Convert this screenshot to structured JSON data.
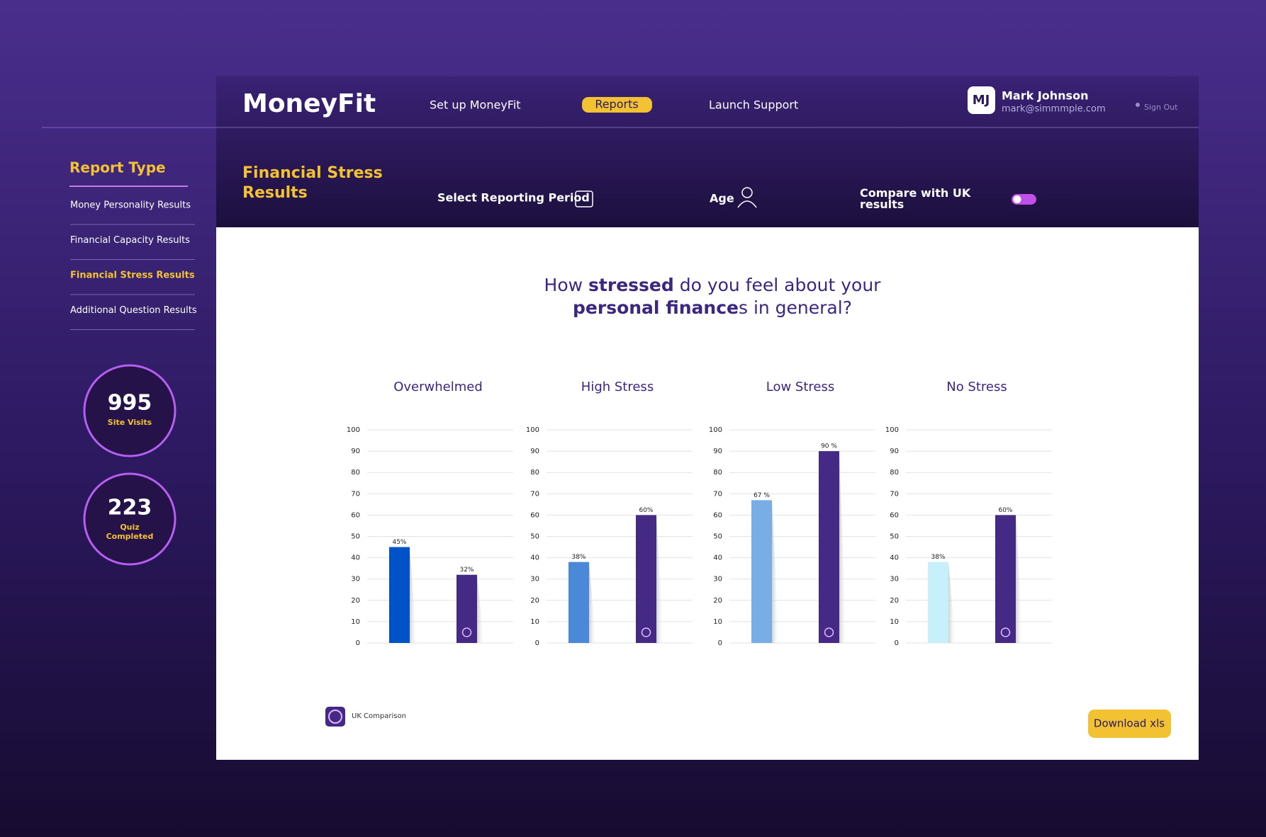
{
  "header": {
    "logo": "MoneyFit",
    "nav": [
      "Set up MoneyFit",
      "Reports",
      "Launch Support"
    ],
    "user": {
      "initials": "MJ",
      "name": "Mark Johnson",
      "email": "mark@simmmple.com",
      "sign_out": "Sign Out"
    }
  },
  "sidebar": {
    "title": "Report Type",
    "items": [
      "Money Personality Results",
      "Financial Capacity Results",
      "Financial Stress Results",
      "Additional Question Results"
    ]
  },
  "stats": [
    {
      "value": 995,
      "label": "Site Visits"
    },
    {
      "value": 223,
      "label": "Quiz Completed"
    }
  ],
  "filters": {
    "title": "Financial Stress Results",
    "period": "Select Reporting Period",
    "age": "Age",
    "compare": "Compare with UK results"
  },
  "question": {
    "parts": [
      "How ",
      "stressed",
      " do you feel about your",
      "personal finance",
      "s in general?"
    ]
  },
  "chart_data": [
    {
      "type": "bar",
      "title": "Overwhelmed",
      "series": [
        {
          "color": "#0052c9",
          "values": [
            45
          ],
          "value_labels": [
            "45%"
          ]
        },
        {
          "color": "#452a85",
          "values": [
            32
          ],
          "value_labels": [
            "32%"
          ]
        }
      ],
      "ylim": [
        0,
        100
      ],
      "yticks": [
        0,
        10,
        20,
        30,
        40,
        50,
        60,
        70,
        80,
        90,
        100
      ],
      "grid": true
    },
    {
      "type": "bar",
      "title": "High Stress",
      "series": [
        {
          "color": "#4a88d8",
          "values": [
            38
          ],
          "value_labels": [
            "38%"
          ]
        },
        {
          "color": "#452a85",
          "values": [
            60
          ],
          "value_labels": [
            "60%"
          ]
        }
      ],
      "ylim": [
        0,
        100
      ],
      "yticks": [
        0,
        10,
        20,
        30,
        40,
        50,
        60,
        70,
        80,
        90,
        100
      ],
      "grid": true
    },
    {
      "type": "bar",
      "title": "Low Stress",
      "series": [
        {
          "color": "#79ade6",
          "values": [
            67
          ],
          "value_labels": [
            "67 %"
          ]
        },
        {
          "color": "#452a85",
          "values": [
            90
          ],
          "value_labels": [
            "90 %"
          ]
        }
      ],
      "ylim": [
        0,
        100
      ],
      "yticks": [
        0,
        10,
        20,
        30,
        40,
        50,
        60,
        70,
        80,
        90,
        100
      ],
      "grid": true
    },
    {
      "type": "bar",
      "title": "No Stress",
      "series": [
        {
          "color": "#c6f1fb",
          "values": [
            38
          ],
          "value_labels": [
            "38%"
          ]
        },
        {
          "color": "#452a85",
          "values": [
            60
          ],
          "value_labels": [
            "60%"
          ]
        }
      ],
      "ylim": [
        0,
        100
      ],
      "yticks": [
        0,
        10,
        20,
        30,
        40,
        50,
        60,
        70,
        80,
        90,
        100
      ],
      "grid": true
    }
  ],
  "legend": "UK Comparison",
  "download": "Download xls"
}
